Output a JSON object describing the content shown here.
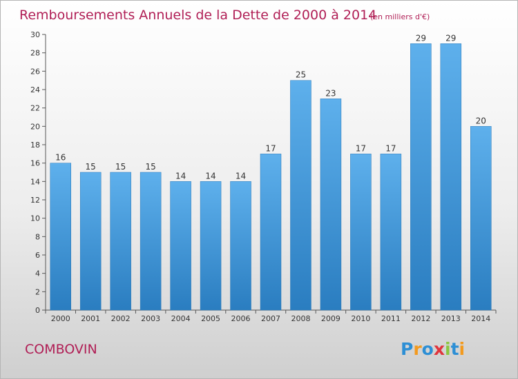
{
  "chart_data": {
    "type": "bar",
    "title": "Remboursements Annuels de la Dette de 2000 à 2014",
    "subtitle": "(en milliers d'€)",
    "categories": [
      "2000",
      "2001",
      "2002",
      "2003",
      "2004",
      "2005",
      "2006",
      "2007",
      "2008",
      "2009",
      "2010",
      "2011",
      "2012",
      "2013",
      "2014"
    ],
    "values": [
      16,
      15,
      15,
      15,
      14,
      14,
      14,
      17,
      25,
      23,
      17,
      17,
      29,
      29,
      20
    ],
    "ylim": [
      0,
      30
    ],
    "yticks": [
      0,
      2,
      4,
      6,
      8,
      10,
      12,
      14,
      16,
      18,
      20,
      22,
      24,
      26,
      28,
      30
    ],
    "xlabel": "",
    "ylabel": "",
    "grid": false,
    "bar_color": "#4a9de0"
  },
  "footer": {
    "commune": "COMBOVIN",
    "logo_letters": [
      "P",
      "r",
      "o",
      "x",
      "i",
      "t",
      "i"
    ],
    "logo_colors": [
      "#2d8fd5",
      "#f39a1e",
      "#2d8fd5",
      "#e0343c",
      "#8cc63f",
      "#2d8fd5",
      "#f39a1e"
    ]
  },
  "colors": {
    "title": "#b01e55",
    "axis": "#555555"
  }
}
